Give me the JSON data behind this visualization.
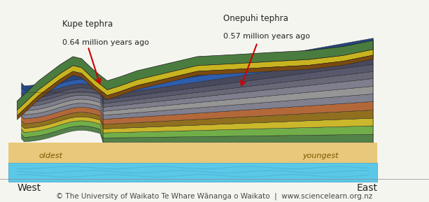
{
  "bg_color": "#f5f5f0",
  "title": "",
  "footer_text": "© The University of Waikato Te Whare Wānanga o Waikato  |  www.sciencelearn.org.nz",
  "footer_color": "#444444",
  "footer_fontsize": 7.5,
  "west_label": "West",
  "east_label": "East",
  "oldest_label": "oldest",
  "youngest_label": "youngest",
  "label_fontsize": 9,
  "annotation1_title": "Kupe tephra",
  "annotation1_sub": "0.64 million years ago",
  "annotation2_title": "Onepuhi tephra",
  "annotation2_sub": "0.57 million years ago",
  "annotation_fontsize": 8.5,
  "arrow_color": "#cc0000",
  "water_color": "#5bc8e8",
  "water_dark": "#3a9ec0",
  "sand_color": "#e8c87a",
  "sand_dark": "#c8a850",
  "layer_colors": [
    "#4a7c3f",
    "#6aaa40",
    "#c8b420",
    "#8b6914",
    "#b06030",
    "#7a7a8a",
    "#909090",
    "#787888",
    "#606070",
    "#505065",
    "#404055",
    "#2255aa",
    "#1a3d7a"
  ],
  "outline_color": "#1a1a1a"
}
